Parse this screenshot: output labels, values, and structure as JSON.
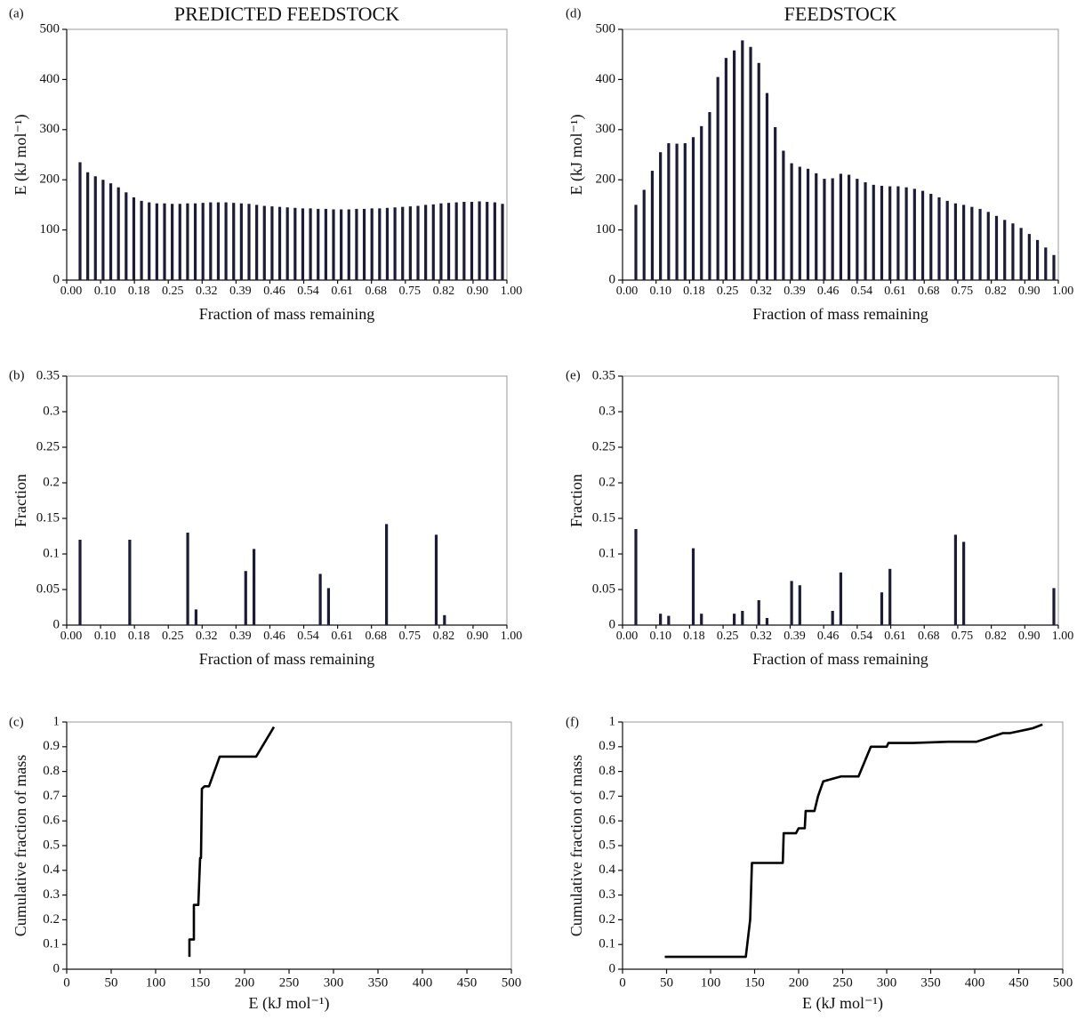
{
  "chart_data": [
    {
      "type": "bar",
      "panel_label": "(a)",
      "title": "PREDICTED FEEDSTOCK",
      "x_label": "Fraction of mass remaining",
      "y_label": "E (kJ mol⁻¹)",
      "color": "#1c1c38",
      "ylim": [
        0,
        500
      ],
      "yticks": [
        0,
        100,
        200,
        300,
        400,
        500
      ],
      "xtick_labels": [
        "0.00",
        "0.10",
        "0.18",
        "0.25",
        "0.32",
        "0.39",
        "0.46",
        "0.54",
        "0.61",
        "0.68",
        "0.75",
        "0.82",
        "0.90",
        "1.00"
      ],
      "values": [
        235,
        215,
        207,
        200,
        193,
        185,
        175,
        165,
        158,
        155,
        153,
        153,
        152,
        152,
        153,
        153,
        154,
        155,
        155,
        155,
        154,
        153,
        152,
        150,
        148,
        147,
        146,
        145,
        144,
        143,
        143,
        142,
        142,
        141,
        141,
        141,
        142,
        142,
        143,
        143,
        144,
        145,
        146,
        147,
        148,
        150,
        151,
        153,
        154,
        155,
        156,
        156,
        157,
        156,
        155,
        152
      ]
    },
    {
      "type": "bar",
      "panel_label": "(b)",
      "x_label": "Fraction of mass remaining",
      "y_label": "Fraction",
      "color": "#1c1c38",
      "ylim": [
        0,
        0.35
      ],
      "yticks": [
        0,
        0.05,
        0.1,
        0.15,
        0.2,
        0.25,
        0.3,
        0.35
      ],
      "xtick_labels": [
        "0.00",
        "0.10",
        "0.18",
        "0.25",
        "0.32",
        "0.39",
        "0.46",
        "0.54",
        "0.61",
        "0.68",
        "0.75",
        "0.82",
        "0.90",
        "1.00"
      ],
      "values": [
        0.12,
        0,
        0,
        0,
        0,
        0,
        0.12,
        0,
        0,
        0,
        0,
        0,
        0,
        0.13,
        0.022,
        0,
        0,
        0,
        0,
        0,
        0.076,
        0.107,
        0,
        0,
        0,
        0,
        0,
        0,
        0,
        0.072,
        0.052,
        0,
        0,
        0,
        0,
        0,
        0,
        0.142,
        0,
        0,
        0,
        0,
        0,
        0.127,
        0.014,
        0,
        0,
        0,
        0,
        0,
        0,
        0
      ]
    },
    {
      "type": "line",
      "panel_label": "(c)",
      "x_label": "E (kJ mol⁻¹)",
      "y_label": "Cumulative fraction of mass",
      "color": "#000000",
      "xlim": [
        0,
        500
      ],
      "xticks": [
        0,
        50,
        100,
        150,
        200,
        250,
        300,
        350,
        400,
        450,
        500
      ],
      "ylim": [
        0,
        1
      ],
      "yticks": [
        0,
        0.1,
        0.2,
        0.3,
        0.4,
        0.5,
        0.6,
        0.7,
        0.8,
        0.9,
        1
      ],
      "x": [
        138,
        138,
        143,
        143,
        148,
        150,
        151,
        152,
        155,
        160,
        172,
        213,
        233
      ],
      "y": [
        0.05,
        0.12,
        0.12,
        0.26,
        0.26,
        0.45,
        0.45,
        0.73,
        0.74,
        0.74,
        0.86,
        0.86,
        0.98
      ]
    },
    {
      "type": "bar",
      "panel_label": "(d)",
      "title": "FEEDSTOCK",
      "x_label": "Fraction of mass remaining",
      "y_label": "E (kJ mol⁻¹)",
      "color": "#1c1c38",
      "ylim": [
        0,
        500
      ],
      "yticks": [
        0,
        100,
        200,
        300,
        400,
        500
      ],
      "xtick_labels": [
        "0.00",
        "0.10",
        "0.18",
        "0.25",
        "0.32",
        "0.39",
        "0.46",
        "0.54",
        "0.61",
        "0.68",
        "0.75",
        "0.82",
        "0.90",
        "1.00"
      ],
      "values": [
        150,
        180,
        218,
        255,
        273,
        272,
        273,
        285,
        307,
        335,
        405,
        443,
        458,
        478,
        465,
        433,
        373,
        305,
        258,
        233,
        226,
        222,
        213,
        202,
        203,
        212,
        210,
        202,
        195,
        190,
        188,
        187,
        187,
        185,
        182,
        178,
        172,
        165,
        158,
        153,
        150,
        146,
        142,
        136,
        128,
        120,
        113,
        104,
        92,
        80,
        65,
        50
      ]
    },
    {
      "type": "bar",
      "panel_label": "(e)",
      "x_label": "Fraction of mass remaining",
      "y_label": "Fraction",
      "color": "#1c1c38",
      "ylim": [
        0,
        0.35
      ],
      "yticks": [
        0,
        0.05,
        0.1,
        0.15,
        0.2,
        0.25,
        0.3,
        0.35
      ],
      "xtick_labels": [
        "0.00",
        "0.10",
        "0.18",
        "0.25",
        "0.32",
        "0.39",
        "0.46",
        "0.54",
        "0.61",
        "0.68",
        "0.75",
        "0.82",
        "0.90",
        "1.00"
      ],
      "values": [
        0.135,
        0,
        0,
        0.016,
        0.013,
        0,
        0,
        0.108,
        0.016,
        0,
        0,
        0,
        0.016,
        0.02,
        0,
        0.035,
        0.01,
        0,
        0,
        0.062,
        0.056,
        0,
        0,
        0,
        0.02,
        0.074,
        0,
        0,
        0,
        0,
        0.046,
        0.079,
        0,
        0,
        0,
        0,
        0,
        0,
        0,
        0.127,
        0.117,
        0,
        0,
        0,
        0,
        0,
        0,
        0,
        0,
        0,
        0,
        0.052
      ]
    },
    {
      "type": "line",
      "panel_label": "(f)",
      "x_label": "E (kJ mol⁻¹)",
      "y_label": "Cumulative fraction of mass",
      "color": "#000000",
      "xlim": [
        0,
        500
      ],
      "xticks": [
        0,
        50,
        100,
        150,
        200,
        250,
        300,
        350,
        400,
        450,
        500
      ],
      "ylim": [
        0,
        1
      ],
      "yticks": [
        0,
        0.1,
        0.2,
        0.3,
        0.4,
        0.5,
        0.6,
        0.7,
        0.8,
        0.9,
        1
      ],
      "x": [
        48,
        140,
        145,
        147,
        182,
        183,
        197,
        200,
        207,
        208,
        218,
        222,
        228,
        248,
        268,
        282,
        300,
        302,
        330,
        370,
        402,
        432,
        440,
        460,
        466,
        477
      ],
      "y": [
        0.05,
        0.05,
        0.2,
        0.43,
        0.43,
        0.55,
        0.55,
        0.57,
        0.57,
        0.64,
        0.64,
        0.7,
        0.76,
        0.78,
        0.78,
        0.9,
        0.9,
        0.915,
        0.915,
        0.92,
        0.92,
        0.955,
        0.955,
        0.97,
        0.975,
        0.99
      ]
    }
  ]
}
